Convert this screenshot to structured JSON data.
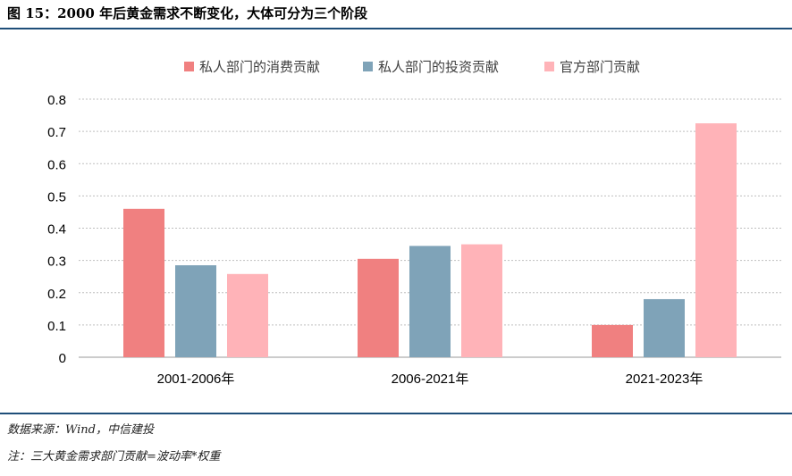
{
  "figure": {
    "title": "图 15：2000 年后黄金需求不断变化，大体可分为三个阶段",
    "source": "数据来源：Wind，中信建投",
    "note": "注：三大黄金需求部门贡献=波动率*权重"
  },
  "colors": {
    "series": [
      "#f08080",
      "#7fa3b8",
      "#ffb3b8"
    ],
    "gridline": "#bfbfbf",
    "rule": "#1f4e79"
  },
  "chart_data": {
    "type": "bar",
    "categories": [
      "2001-2006年",
      "2006-2021年",
      "2021-2023年"
    ],
    "series": [
      {
        "name": "私人部门的消费贡献",
        "values": [
          0.46,
          0.305,
          0.1
        ]
      },
      {
        "name": "私人部门的投资贡献",
        "values": [
          0.285,
          0.345,
          0.18
        ]
      },
      {
        "name": "官方部门贡献",
        "values": [
          0.258,
          0.35,
          0.725
        ]
      }
    ],
    "ylim": [
      0,
      0.8
    ],
    "yticks": [
      "0",
      "0.1",
      "0.2",
      "0.3",
      "0.4",
      "0.5",
      "0.6",
      "0.7",
      "0.8"
    ],
    "grid": true,
    "legend": "top-center",
    "title": "",
    "xlabel": "",
    "ylabel": ""
  }
}
